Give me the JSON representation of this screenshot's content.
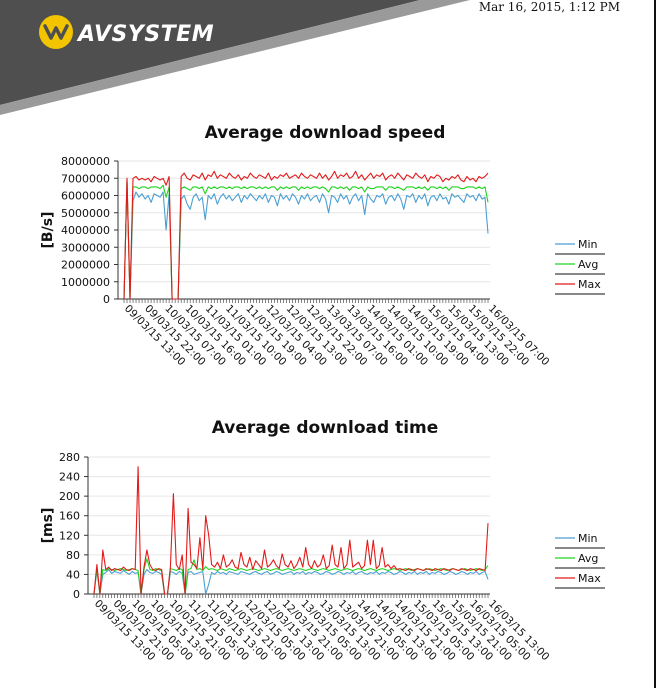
{
  "header": {
    "brand": "AVSYSTEM",
    "date": "Mar 16, 2015, 1:12 PM",
    "colors": {
      "banner_dark": "#4a4a4a",
      "banner_mid": "#8a8a8a",
      "logo_accent": "#f2c500"
    },
    "logo_icon": "avsystem-logo-icon"
  },
  "chart_data": [
    {
      "type": "line",
      "title": "Average download speed",
      "xlabel": "",
      "ylabel": "[B/s]",
      "ylim": [
        0,
        8000000
      ],
      "yticks": [
        "8000000",
        "7000000",
        "6000000",
        "5000000",
        "4000000",
        "3000000",
        "2000000",
        "1000000",
        "0"
      ],
      "xtick_labels": [
        "09/03/15 13:00",
        "09/03/15 22:00",
        "10/03/15 07:00",
        "10/03/15 16:00",
        "11/03/15 01:00",
        "11/03/15 10:00",
        "11/03/15 19:00",
        "12/03/15 04:00",
        "12/03/15 13:00",
        "12/03/15 22:00",
        "13/03/15 07:00",
        "13/03/15 16:00",
        "14/03/15 01:00",
        "14/03/15 10:00",
        "14/03/15 19:00",
        "15/03/15 04:00",
        "15/03/15 13:00",
        "15/03/15 22:00",
        "16/03/15 07:00"
      ],
      "legend": "right",
      "series": [
        {
          "name": "Min",
          "color": "#4a9fd3",
          "values": [
            0,
            6800000,
            0,
            5700000,
            6200000,
            5900000,
            6100000,
            5800000,
            6000000,
            5600000,
            6100000,
            6000000,
            5900000,
            6200000,
            4000000,
            6100000,
            0,
            0,
            0,
            5800000,
            6000000,
            5500000,
            5200000,
            5900000,
            6100000,
            5700000,
            5900000,
            4600000,
            6000000,
            5800000,
            6100000,
            5500000,
            5900000,
            6100000,
            5800000,
            6000000,
            5700000,
            5900000,
            6100000,
            5600000,
            6000000,
            5800000,
            6100000,
            5900000,
            5700000,
            6000000,
            5800000,
            6100000,
            5600000,
            6000000,
            5900000,
            5400000,
            6100000,
            5800000,
            6000000,
            5700000,
            6100000,
            5900000,
            5500000,
            6000000,
            5800000,
            6100000,
            5700000,
            5900000,
            6000000,
            5600000,
            6100000,
            5800000,
            5000000,
            6000000,
            5900000,
            5600000,
            6100000,
            5800000,
            6000000,
            5500000,
            5900000,
            6100000,
            5700000,
            6000000,
            4900000,
            6100000,
            5800000,
            5600000,
            6000000,
            5900000,
            6100000,
            5500000,
            5900000,
            6000000,
            5700000,
            6100000,
            5800000,
            5200000,
            6000000,
            5900000,
            6100000,
            5600000,
            6000000,
            5800000,
            6100000,
            5400000,
            5900000,
            6000000,
            5700000,
            6100000,
            5800000,
            5900000,
            5500000,
            6100000,
            5900000,
            6000000,
            5800000,
            5600000,
            6100000,
            5900000,
            6000000,
            5700000,
            6100000,
            5800000,
            5900000,
            3800000
          ]
        },
        {
          "name": "Avg",
          "color": "#21d321",
          "values": [
            0,
            6900000,
            0,
            6500000,
            6500000,
            6400000,
            6500000,
            6500000,
            6400000,
            6500000,
            6500000,
            6500000,
            6400000,
            6600000,
            5900000,
            6500000,
            0,
            0,
            0,
            6400000,
            6500000,
            6400000,
            6300000,
            6500000,
            6500000,
            6400000,
            6500000,
            6100000,
            6500000,
            6400000,
            6500000,
            6400000,
            6500000,
            6500000,
            6400000,
            6500000,
            6400000,
            6500000,
            6500000,
            6400000,
            6500000,
            6400000,
            6500000,
            6500000,
            6400000,
            6500000,
            6400000,
            6500000,
            6400000,
            6500000,
            6500000,
            6300000,
            6500000,
            6400000,
            6500000,
            6400000,
            6500000,
            6500000,
            6300000,
            6500000,
            6400000,
            6500000,
            6400000,
            6500000,
            6500000,
            6400000,
            6500000,
            6400000,
            6200000,
            6500000,
            6500000,
            6400000,
            6500000,
            6400000,
            6500000,
            6300000,
            6500000,
            6500000,
            6400000,
            6500000,
            6200000,
            6500000,
            6400000,
            6400000,
            6500000,
            6500000,
            6500000,
            6300000,
            6500000,
            6500000,
            6400000,
            6500000,
            6400000,
            6300000,
            6500000,
            6500000,
            6500000,
            6400000,
            6500000,
            6400000,
            6500000,
            6300000,
            6500000,
            6500000,
            6400000,
            6500000,
            6400000,
            6500000,
            6300000,
            6500000,
            6500000,
            6500000,
            6400000,
            6400000,
            6500000,
            6500000,
            6500000,
            6400000,
            6500000,
            6400000,
            6500000,
            5600000
          ]
        },
        {
          "name": "Max",
          "color": "#e21a1a",
          "values": [
            0,
            7000000,
            0,
            7000000,
            7100000,
            6900000,
            7000000,
            6900000,
            7000000,
            6800000,
            7100000,
            7000000,
            6900000,
            7000000,
            6600000,
            7100000,
            0,
            0,
            0,
            7100000,
            7300000,
            7000000,
            6900000,
            7200000,
            7100000,
            7000000,
            7300000,
            6900000,
            7200000,
            7100000,
            7400000,
            7000000,
            7200000,
            7100000,
            7000000,
            7300000,
            7100000,
            7000000,
            7200000,
            6900000,
            7100000,
            7000000,
            7300000,
            7100000,
            7000000,
            7200000,
            7100000,
            7000000,
            7300000,
            6900000,
            7100000,
            7000000,
            7200000,
            7100000,
            7300000,
            7000000,
            7100000,
            7200000,
            7000000,
            7300000,
            7100000,
            7000000,
            7200000,
            7100000,
            7000000,
            7300000,
            7000000,
            7200000,
            6900000,
            7100000,
            7400000,
            7000000,
            7200000,
            7100000,
            7300000,
            7000000,
            7100000,
            7400000,
            7000000,
            7200000,
            6900000,
            7100000,
            7300000,
            7000000,
            7200000,
            7100000,
            7300000,
            6900000,
            7100000,
            7200000,
            7000000,
            7300000,
            7100000,
            6900000,
            7200000,
            7100000,
            7000000,
            7300000,
            7100000,
            7000000,
            7200000,
            6800000,
            7100000,
            7000000,
            7200000,
            7100000,
            6800000,
            7000000,
            6900000,
            7100000,
            7000000,
            7200000,
            6900000,
            6800000,
            7100000,
            6900000,
            7000000,
            6800000,
            7100000,
            7000000,
            7100000,
            7300000
          ]
        }
      ]
    },
    {
      "type": "line",
      "title": "Average download time",
      "xlabel": "",
      "ylabel": "[ms]",
      "ylim": [
        0,
        280
      ],
      "yticks": [
        "280",
        "240",
        "200",
        "160",
        "120",
        "80",
        "40",
        "0"
      ],
      "xtick_labels": [
        "09/03/15 13:00",
        "09/03/15 21:00",
        "10/03/15 05:00",
        "10/03/15 13:00",
        "10/03/15 21:00",
        "11/03/15 05:00",
        "11/03/15 13:00",
        "11/03/15 21:00",
        "12/03/15 05:00",
        "12/03/15 13:00",
        "12/03/15 21:00",
        "13/03/15 05:00",
        "13/03/15 13:00",
        "13/03/15 21:00",
        "14/03/15 05:00",
        "14/03/15 13:00",
        "14/03/15 21:00",
        "15/03/15 05:00",
        "15/03/15 13:00",
        "15/03/15 21:00",
        "16/03/15 05:00",
        "16/03/15 13:00"
      ],
      "legend": "right",
      "series": [
        {
          "name": "Min",
          "color": "#4a9fd3",
          "values": [
            0,
            48,
            0,
            40,
            44,
            50,
            42,
            46,
            44,
            42,
            48,
            44,
            40,
            46,
            42,
            44,
            0,
            40,
            50,
            44,
            42,
            46,
            44,
            40,
            0,
            0,
            46,
            44,
            40,
            46,
            42,
            0,
            44,
            46,
            40,
            42,
            44,
            46,
            0,
            20,
            44,
            40,
            46,
            42,
            44,
            40,
            46,
            44,
            42,
            40,
            46,
            44,
            42,
            40,
            44,
            46,
            42,
            40,
            44,
            46,
            40,
            42,
            46,
            44,
            40,
            42,
            44,
            46,
            40,
            44,
            42,
            46,
            40,
            44,
            42,
            46,
            44,
            40,
            42,
            46,
            44,
            40,
            42,
            46,
            44,
            40,
            44,
            42,
            46,
            40,
            44,
            46,
            42,
            40,
            44,
            42,
            46,
            40,
            44,
            42,
            46,
            44,
            40,
            42,
            46,
            44,
            40,
            44,
            42,
            46,
            40,
            44,
            42,
            46,
            40,
            44,
            42,
            46,
            44,
            40,
            42,
            46,
            44,
            40,
            42,
            46,
            44,
            40,
            44,
            42,
            46,
            40,
            44,
            46,
            30
          ]
        },
        {
          "name": "Avg",
          "color": "#21d321",
          "values": [
            0,
            52,
            0,
            50,
            48,
            52,
            50,
            48,
            50,
            52,
            50,
            48,
            50,
            52,
            50,
            48,
            0,
            50,
            72,
            50,
            48,
            52,
            50,
            48,
            0,
            0,
            52,
            50,
            48,
            52,
            50,
            0,
            50,
            52,
            70,
            50,
            52,
            48,
            56,
            50,
            52,
            50,
            48,
            52,
            50,
            48,
            52,
            50,
            48,
            50,
            52,
            50,
            48,
            50,
            52,
            50,
            48,
            50,
            52,
            50,
            48,
            50,
            52,
            50,
            48,
            50,
            52,
            50,
            48,
            50,
            52,
            50,
            48,
            50,
            52,
            50,
            48,
            50,
            52,
            50,
            48,
            50,
            52,
            50,
            48,
            50,
            52,
            50,
            48,
            50,
            52,
            50,
            48,
            50,
            52,
            50,
            48,
            50,
            52,
            50,
            48,
            50,
            52,
            50,
            48,
            50,
            52,
            50,
            48,
            50,
            52,
            50,
            48,
            50,
            52,
            50,
            48,
            50,
            52,
            50,
            48,
            50,
            52,
            50,
            48,
            50,
            52,
            50,
            48,
            50,
            52,
            50,
            48,
            50,
            58
          ]
        },
        {
          "name": "Max",
          "color": "#e21a1a",
          "values": [
            0,
            60,
            0,
            90,
            50,
            55,
            48,
            52,
            50,
            48,
            55,
            50,
            48,
            52,
            50,
            260,
            0,
            55,
            90,
            60,
            50,
            48,
            52,
            50,
            0,
            0,
            55,
            205,
            60,
            50,
            80,
            0,
            175,
            65,
            60,
            52,
            115,
            50,
            160,
            120,
            60,
            55,
            65,
            52,
            80,
            55,
            60,
            70,
            55,
            52,
            85,
            60,
            55,
            75,
            50,
            68,
            60,
            52,
            90,
            55,
            60,
            70,
            58,
            52,
            82,
            60,
            55,
            68,
            52,
            60,
            75,
            55,
            95,
            60,
            52,
            68,
            55,
            60,
            80,
            52,
            58,
            100,
            60,
            55,
            95,
            52,
            60,
            110,
            55,
            60,
            65,
            52,
            58,
            110,
            60,
            110,
            52,
            58,
            95,
            55,
            60,
            52,
            58,
            50,
            52,
            50,
            48,
            52,
            50,
            48,
            52,
            50,
            48,
            52,
            50,
            48,
            52,
            50,
            48,
            52,
            50,
            48,
            52,
            50,
            48,
            52,
            50,
            48,
            52,
            50,
            48,
            52,
            50,
            48,
            145
          ]
        }
      ]
    }
  ]
}
